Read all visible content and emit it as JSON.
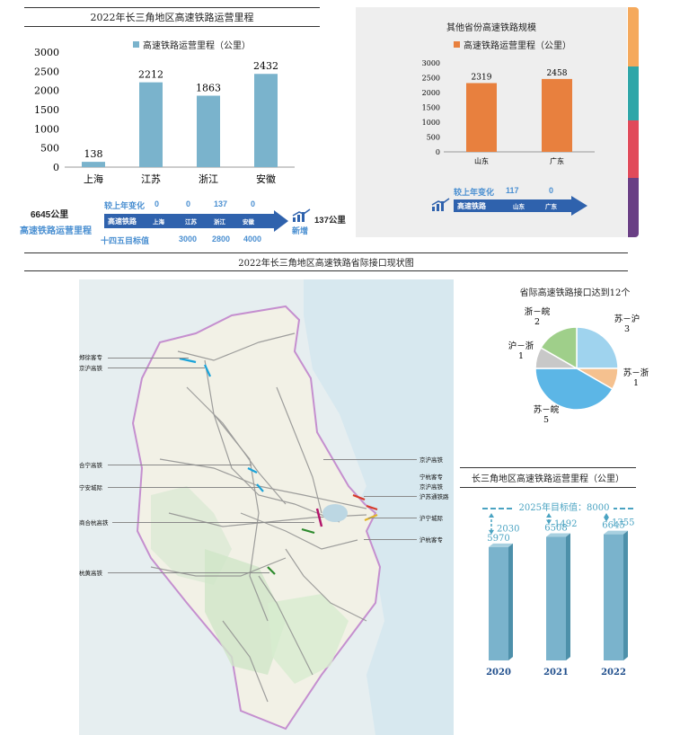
{
  "top_left": {
    "title": "2022年长三角地区高速铁路运营里程",
    "legend": "高速铁路运营里程（公里）",
    "total_label": "6645公里",
    "total_caption": "高速铁路运营里程",
    "row_change_label": "较上年变化",
    "row_change_values": [
      "0",
      "0",
      "137",
      "0"
    ],
    "bar_label": "高速铁路",
    "bar_items": [
      "上海",
      "江苏",
      "浙江",
      "安徽"
    ],
    "row_target_label": "十四五目标值",
    "row_target_values": [
      "",
      "3000",
      "2800",
      "4000"
    ],
    "added_value": "137公里",
    "added_label": "新增"
  },
  "top_right": {
    "title": "其他省份高速铁路规模",
    "legend": "高速铁路运营里程（公里）",
    "row_change_label": "较上年变化",
    "row_change_values": [
      "117",
      "0"
    ],
    "bar_label": "高速铁路",
    "bar_items": [
      "山东",
      "广东"
    ]
  },
  "map_section": {
    "title": "2022年长三角地区高速铁路省际接口现状图",
    "left_labels": [
      "郑徐客专",
      "京沪高铁",
      "合宁高铁",
      "宁安城际",
      "商合杭高铁",
      "杭黄高铁"
    ],
    "right_labels": [
      "京沪高铁",
      "宁杭客专",
      "京沪高铁",
      "沪苏通铁路",
      "沪宁城际",
      "沪杭客专"
    ]
  },
  "pie": {
    "title": "省际高速铁路接口达到12个"
  },
  "target_chart": {
    "title": "长三角地区高速铁路运营里程（公里）",
    "target_label": "2025年目标值：8000",
    "gaps": [
      "2030",
      "1492",
      "1355"
    ]
  },
  "colors": {
    "bar_blue": "#7ab3cc",
    "bar_orange": "#e8803e",
    "arrow_blue": "#2f62ad",
    "pie_su_hu": "#9fd3ee",
    "pie_su_zhe": "#f5c18f",
    "pie_su_wan": "#5cb6e6",
    "pie_hu_zhe": "#c8c8c8",
    "pie_zhe_wan": "#9fcf8a",
    "tabs": [
      "#f5a95c",
      "#2fa6a8",
      "#e14a5a",
      "#6a3f85"
    ]
  },
  "chart_data": [
    {
      "type": "bar",
      "categories": [
        "上海",
        "江苏",
        "浙江",
        "安徽"
      ],
      "values": [
        138,
        2212,
        1863,
        2432
      ],
      "ylim": [
        0,
        3000
      ],
      "yticks": [
        "0",
        "500",
        "1000",
        "1500",
        "2000",
        "2500",
        "3000"
      ],
      "series_name": "高速铁路运营里程（公里）"
    },
    {
      "type": "bar",
      "categories": [
        "山东",
        "广东"
      ],
      "values": [
        2319,
        2458
      ],
      "ylim": [
        0,
        3000
      ],
      "yticks": [
        "0",
        "500",
        "1000",
        "1500",
        "2000",
        "2500",
        "3000"
      ],
      "series_name": "高速铁路运营里程（公里）"
    },
    {
      "type": "pie",
      "labels": [
        "苏－沪",
        "苏－浙",
        "苏－皖",
        "沪－浙",
        "浙－皖"
      ],
      "values": [
        3,
        1,
        5,
        1,
        2
      ],
      "title": "省际高速铁路接口达到12个"
    },
    {
      "type": "bar",
      "categories": [
        "2020",
        "2021",
        "2022"
      ],
      "values": [
        5970,
        6508,
        6645
      ],
      "target": 8000,
      "title": "长三角地区高速铁路运营里程（公里）"
    }
  ]
}
